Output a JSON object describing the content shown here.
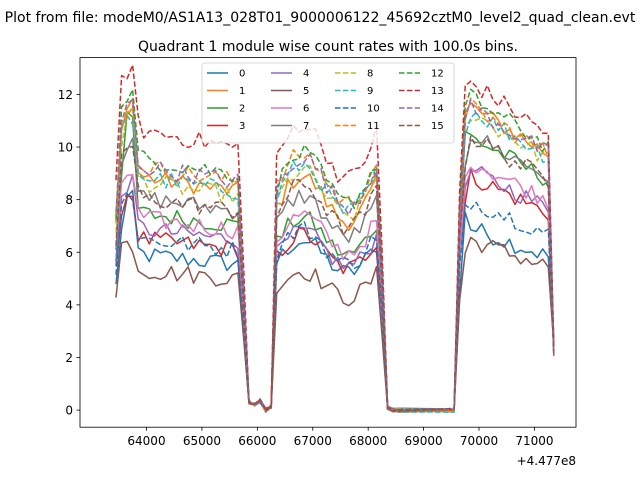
{
  "figure": {
    "suptitle": "Plot from file: modeM0/AS1A13_028T01_9000006122_45692cztM0_level2_quad_clean.evt",
    "title": "Quadrant 1 module wise count rates with 100.0s bins.",
    "offset_text": "+4.477e8"
  },
  "chart_data": {
    "type": "line",
    "title": "Quadrant 1 module wise count rates with 100.0s bins.",
    "xlabel": "",
    "ylabel": "",
    "x_offset": 447700000,
    "xlim": [
      62800,
      71750
    ],
    "ylim": [
      -0.65,
      13.4
    ],
    "xticks": [
      64000,
      65000,
      66000,
      67000,
      68000,
      69000,
      70000,
      71000
    ],
    "yticks": [
      0,
      2,
      4,
      6,
      8,
      10,
      12
    ],
    "grid": false,
    "legend": {
      "placement": "upper center",
      "ncol": 4
    },
    "segments": [
      {
        "x_start": 63450,
        "x_end": 65750,
        "step": 100
      },
      {
        "x_start": 66350,
        "x_end": 68250,
        "step": 100
      },
      {
        "x_start": 69650,
        "x_end": 71350,
        "step": 100
      }
    ],
    "gaps": [
      {
        "x": [
          65750,
          65850,
          65950,
          66050,
          66150,
          66250,
          66350
        ],
        "y": [
          4.0,
          0.3,
          0.2,
          0.35,
          0.0,
          0.15,
          4.5
        ]
      },
      {
        "x": [
          68250,
          68350,
          68450,
          68550,
          69550,
          69650
        ],
        "y": [
          4.5,
          0.1,
          0.0,
          0.0,
          0.0,
          6.0
        ]
      }
    ],
    "series": [
      {
        "name": "0",
        "color": "#1f77b4",
        "style": "solid",
        "segment_levels": [
          6.0,
          6.1,
          6.0
        ],
        "peak": 8.0
      },
      {
        "name": "1",
        "color": "#ff7f0e",
        "style": "solid",
        "segment_levels": [
          9.0,
          8.4,
          10.0
        ],
        "peak": 11.8
      },
      {
        "name": "2",
        "color": "#2ca02c",
        "style": "solid",
        "segment_levels": [
          7.6,
          6.9,
          9.0
        ],
        "peak": 11.0
      },
      {
        "name": "3",
        "color": "#d62728",
        "style": "solid",
        "segment_levels": [
          6.6,
          6.3,
          7.7
        ],
        "peak": 8.2
      },
      {
        "name": "4",
        "color": "#9467bd",
        "style": "solid",
        "segment_levels": [
          7.0,
          6.4,
          7.9
        ],
        "peak": 8.6
      },
      {
        "name": "5",
        "color": "#8c564b",
        "style": "solid",
        "segment_levels": [
          5.4,
          5.0,
          5.6
        ],
        "peak": 6.3
      },
      {
        "name": "6",
        "color": "#e377c2",
        "style": "solid",
        "segment_levels": [
          7.4,
          7.0,
          8.2
        ],
        "peak": 9.0
      },
      {
        "name": "7",
        "color": "#7f7f7f",
        "style": "solid",
        "segment_levels": [
          8.2,
          7.7,
          9.1
        ],
        "peak": 10.0
      },
      {
        "name": "8",
        "color": "#bcbd22",
        "style": "dashed",
        "segment_levels": [
          8.8,
          8.6,
          9.8
        ],
        "peak": 11.2
      },
      {
        "name": "9",
        "color": "#17becf",
        "style": "dashed",
        "segment_levels": [
          9.0,
          8.8,
          9.9
        ],
        "peak": 11.0
      },
      {
        "name": "10",
        "color": "#1f77b4",
        "style": "dashed",
        "segment_levels": [
          6.6,
          6.5,
          6.9
        ],
        "peak": 8.2
      },
      {
        "name": "11",
        "color": "#ff7f0e",
        "style": "dashed",
        "segment_levels": [
          9.4,
          9.2,
          10.0
        ],
        "peak": 11.4
      },
      {
        "name": "12",
        "color": "#2ca02c",
        "style": "dashed",
        "segment_levels": [
          9.7,
          9.2,
          10.3
        ],
        "peak": 12.0
      },
      {
        "name": "13",
        "color": "#d62728",
        "style": "dashed",
        "segment_levels": [
          10.8,
          10.3,
          10.8
        ],
        "peak": 12.9
      },
      {
        "name": "14",
        "color": "#9467bd",
        "style": "dashed",
        "segment_levels": [
          9.4,
          9.1,
          10.0
        ],
        "peak": 11.6
      },
      {
        "name": "15",
        "color": "#8c564b",
        "style": "dashed",
        "segment_levels": [
          8.2,
          8.1,
          9.0
        ],
        "peak": 10.0
      }
    ]
  }
}
